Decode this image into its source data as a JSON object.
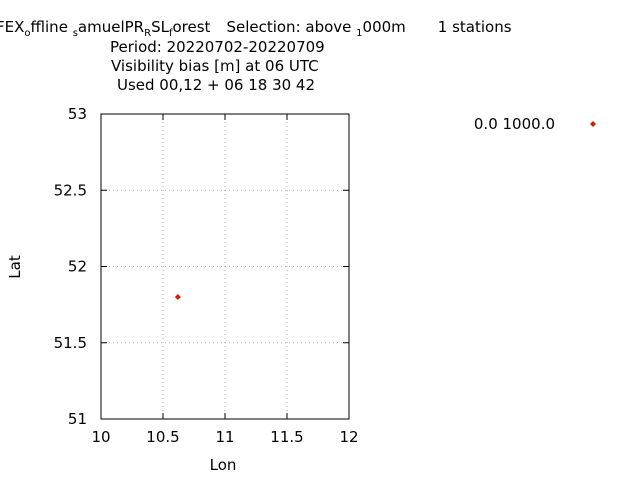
{
  "header": {
    "line1": {
      "p1": "FEX",
      "s1": "o",
      "p2": "ffline ",
      "s2": "s",
      "p3": "amuelPR",
      "s3": "R",
      "p4": "SL",
      "s4": "f",
      "p5": "orest",
      "selection_label": "Selection: above ",
      "s5": "1",
      "selection_suffix": "000m",
      "stations": "1 stations"
    },
    "period": "Period: 20220702-20220709",
    "metric": "Visibility bias [m] at  06 UTC",
    "used": "Used  00,12  + 06 18 30 42"
  },
  "chart_data": {
    "type": "scatter",
    "xlabel": "Lon",
    "ylabel": "Lat",
    "xlim": [
      10,
      12
    ],
    "ylim": [
      51,
      53
    ],
    "xticks": [
      10,
      10.5,
      11,
      11.5,
      12
    ],
    "yticks": [
      51,
      51.5,
      52,
      52.5,
      53
    ],
    "xtick_labels": [
      "10",
      "10.5",
      "11",
      "11.5",
      "12"
    ],
    "ytick_labels": [
      "51",
      "51.5",
      "52",
      "52.5",
      "53"
    ],
    "grid": true,
    "legend_position": "top-right",
    "series": [
      {
        "name": "0.0 1000.0",
        "color": "#cc2200",
        "marker": "diamond",
        "points": [
          {
            "x": 10.62,
            "y": 51.8
          }
        ]
      }
    ]
  }
}
